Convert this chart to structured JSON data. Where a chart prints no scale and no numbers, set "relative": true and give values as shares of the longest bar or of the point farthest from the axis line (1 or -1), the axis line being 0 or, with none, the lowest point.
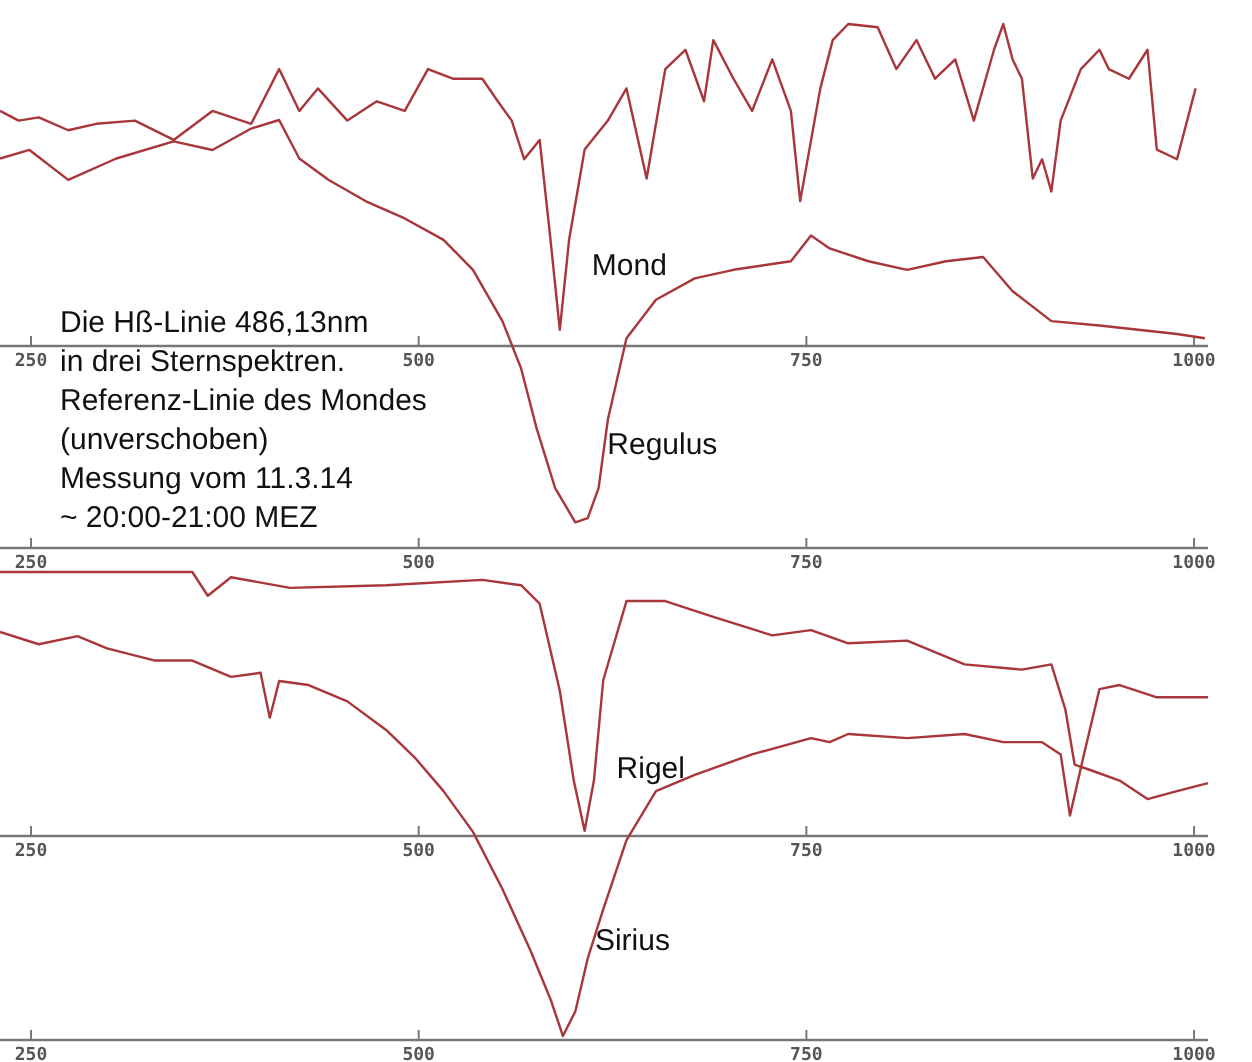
{
  "chart_data": [
    {
      "type": "line",
      "relative": true,
      "xlim": [
        230,
        1009
      ],
      "xticks": [
        250,
        500,
        750,
        1000
      ],
      "annotations": [
        "Die Hß-Linie 486,13nm",
        "in drei Sternspektren.",
        "Referenz-Linie des Mondes",
        "(unverschoben)",
        "Messung vom 11.3.14",
        "~ 20:00-21:00 MEZ"
      ],
      "series": [
        {
          "name": "Mond",
          "color": "#a8363a",
          "x": [
            230,
            242,
            255,
            274,
            292,
            317,
            342,
            367,
            392,
            410,
            423,
            435,
            454,
            473,
            491,
            506,
            522,
            541,
            551,
            560,
            568,
            578,
            585,
            591,
            597,
            607,
            622,
            634,
            647,
            659,
            672,
            684,
            690,
            703,
            715,
            728,
            740,
            746,
            759,
            767,
            777,
            796,
            808,
            821,
            833,
            846,
            858,
            871,
            877,
            883,
            889,
            896,
            902,
            908,
            914,
            927,
            939,
            945,
            958,
            970,
            976,
            989,
            1001
          ],
          "values": [
            0.73,
            0.7,
            0.71,
            0.67,
            0.69,
            0.7,
            0.64,
            0.73,
            0.69,
            0.86,
            0.73,
            0.8,
            0.7,
            0.76,
            0.73,
            0.86,
            0.83,
            0.83,
            0.76,
            0.7,
            0.58,
            0.64,
            0.33,
            0.05,
            0.33,
            0.61,
            0.7,
            0.8,
            0.52,
            0.86,
            0.92,
            0.76,
            0.95,
            0.83,
            0.73,
            0.89,
            0.73,
            0.45,
            0.8,
            0.95,
            1.0,
            0.99,
            0.86,
            0.95,
            0.83,
            0.89,
            0.7,
            0.92,
            1.0,
            0.89,
            0.83,
            0.52,
            0.58,
            0.48,
            0.7,
            0.86,
            0.92,
            0.86,
            0.83,
            0.92,
            0.61,
            0.58,
            0.8
          ]
        }
      ]
    },
    {
      "type": "line",
      "relative": true,
      "xlim": [
        230,
        1009
      ],
      "xticks": [
        250,
        500,
        750,
        1000
      ],
      "series": [
        {
          "name": "Regulus",
          "color": "#a8363a",
          "x": [
            230,
            249,
            274,
            305,
            342,
            367,
            392,
            410,
            423,
            442,
            466,
            491,
            516,
            535,
            554,
            566,
            576,
            588,
            601,
            609,
            616,
            622,
            634,
            653,
            678,
            703,
            740,
            753,
            765,
            790,
            815,
            840,
            864,
            883,
            908,
            939,
            964,
            989,
            1007
          ],
          "values": [
            0.91,
            0.93,
            0.86,
            0.91,
            0.95,
            0.93,
            0.98,
            1.0,
            0.91,
            0.86,
            0.81,
            0.77,
            0.72,
            0.65,
            0.53,
            0.42,
            0.28,
            0.14,
            0.06,
            0.07,
            0.14,
            0.3,
            0.49,
            0.58,
            0.63,
            0.65,
            0.67,
            0.73,
            0.7,
            0.67,
            0.65,
            0.67,
            0.68,
            0.6,
            0.53,
            0.52,
            0.51,
            0.5,
            0.49
          ]
        }
      ]
    },
    {
      "type": "line",
      "relative": true,
      "xlim": [
        230,
        1009
      ],
      "xticks": [
        250,
        500,
        750,
        1000
      ],
      "series": [
        {
          "name": "Rigel",
          "color": "#a8363a",
          "x": [
            230,
            354,
            364,
            379,
            417,
            479,
            541,
            566,
            578,
            591,
            600,
            607,
            613,
            619,
            634,
            659,
            690,
            728,
            753,
            777,
            815,
            852,
            889,
            908,
            917,
            923,
            933,
            952,
            970,
            989,
            1009
          ],
          "values": [
            1.0,
            1.0,
            0.91,
            0.98,
            0.94,
            0.95,
            0.97,
            0.95,
            0.88,
            0.55,
            0.21,
            0.02,
            0.21,
            0.59,
            0.89,
            0.89,
            0.83,
            0.76,
            0.78,
            0.73,
            0.74,
            0.65,
            0.63,
            0.65,
            0.48,
            0.27,
            0.25,
            0.21,
            0.14,
            0.17,
            0.2
          ]
        }
      ]
    },
    {
      "type": "line",
      "relative": true,
      "xlim": [
        230,
        1009
      ],
      "xticks": [
        250,
        500,
        750,
        1000
      ],
      "series": [
        {
          "name": "Sirius",
          "color": "#a8363a",
          "x": [
            230,
            255,
            280,
            299,
            330,
            354,
            379,
            398,
            404,
            410,
            429,
            454,
            479,
            498,
            516,
            535,
            554,
            572,
            585,
            593,
            601,
            609,
            619,
            634,
            653,
            678,
            715,
            753,
            765,
            777,
            815,
            852,
            877,
            902,
            914,
            920,
            929,
            939,
            952,
            976,
            1009
          ],
          "values": [
            1.0,
            0.97,
            0.99,
            0.96,
            0.93,
            0.93,
            0.89,
            0.9,
            0.79,
            0.88,
            0.87,
            0.83,
            0.76,
            0.69,
            0.61,
            0.51,
            0.37,
            0.22,
            0.1,
            0.01,
            0.07,
            0.2,
            0.32,
            0.49,
            0.61,
            0.65,
            0.7,
            0.74,
            0.73,
            0.75,
            0.74,
            0.75,
            0.73,
            0.73,
            0.7,
            0.55,
            0.7,
            0.86,
            0.87,
            0.84,
            0.84
          ]
        }
      ]
    }
  ]
}
